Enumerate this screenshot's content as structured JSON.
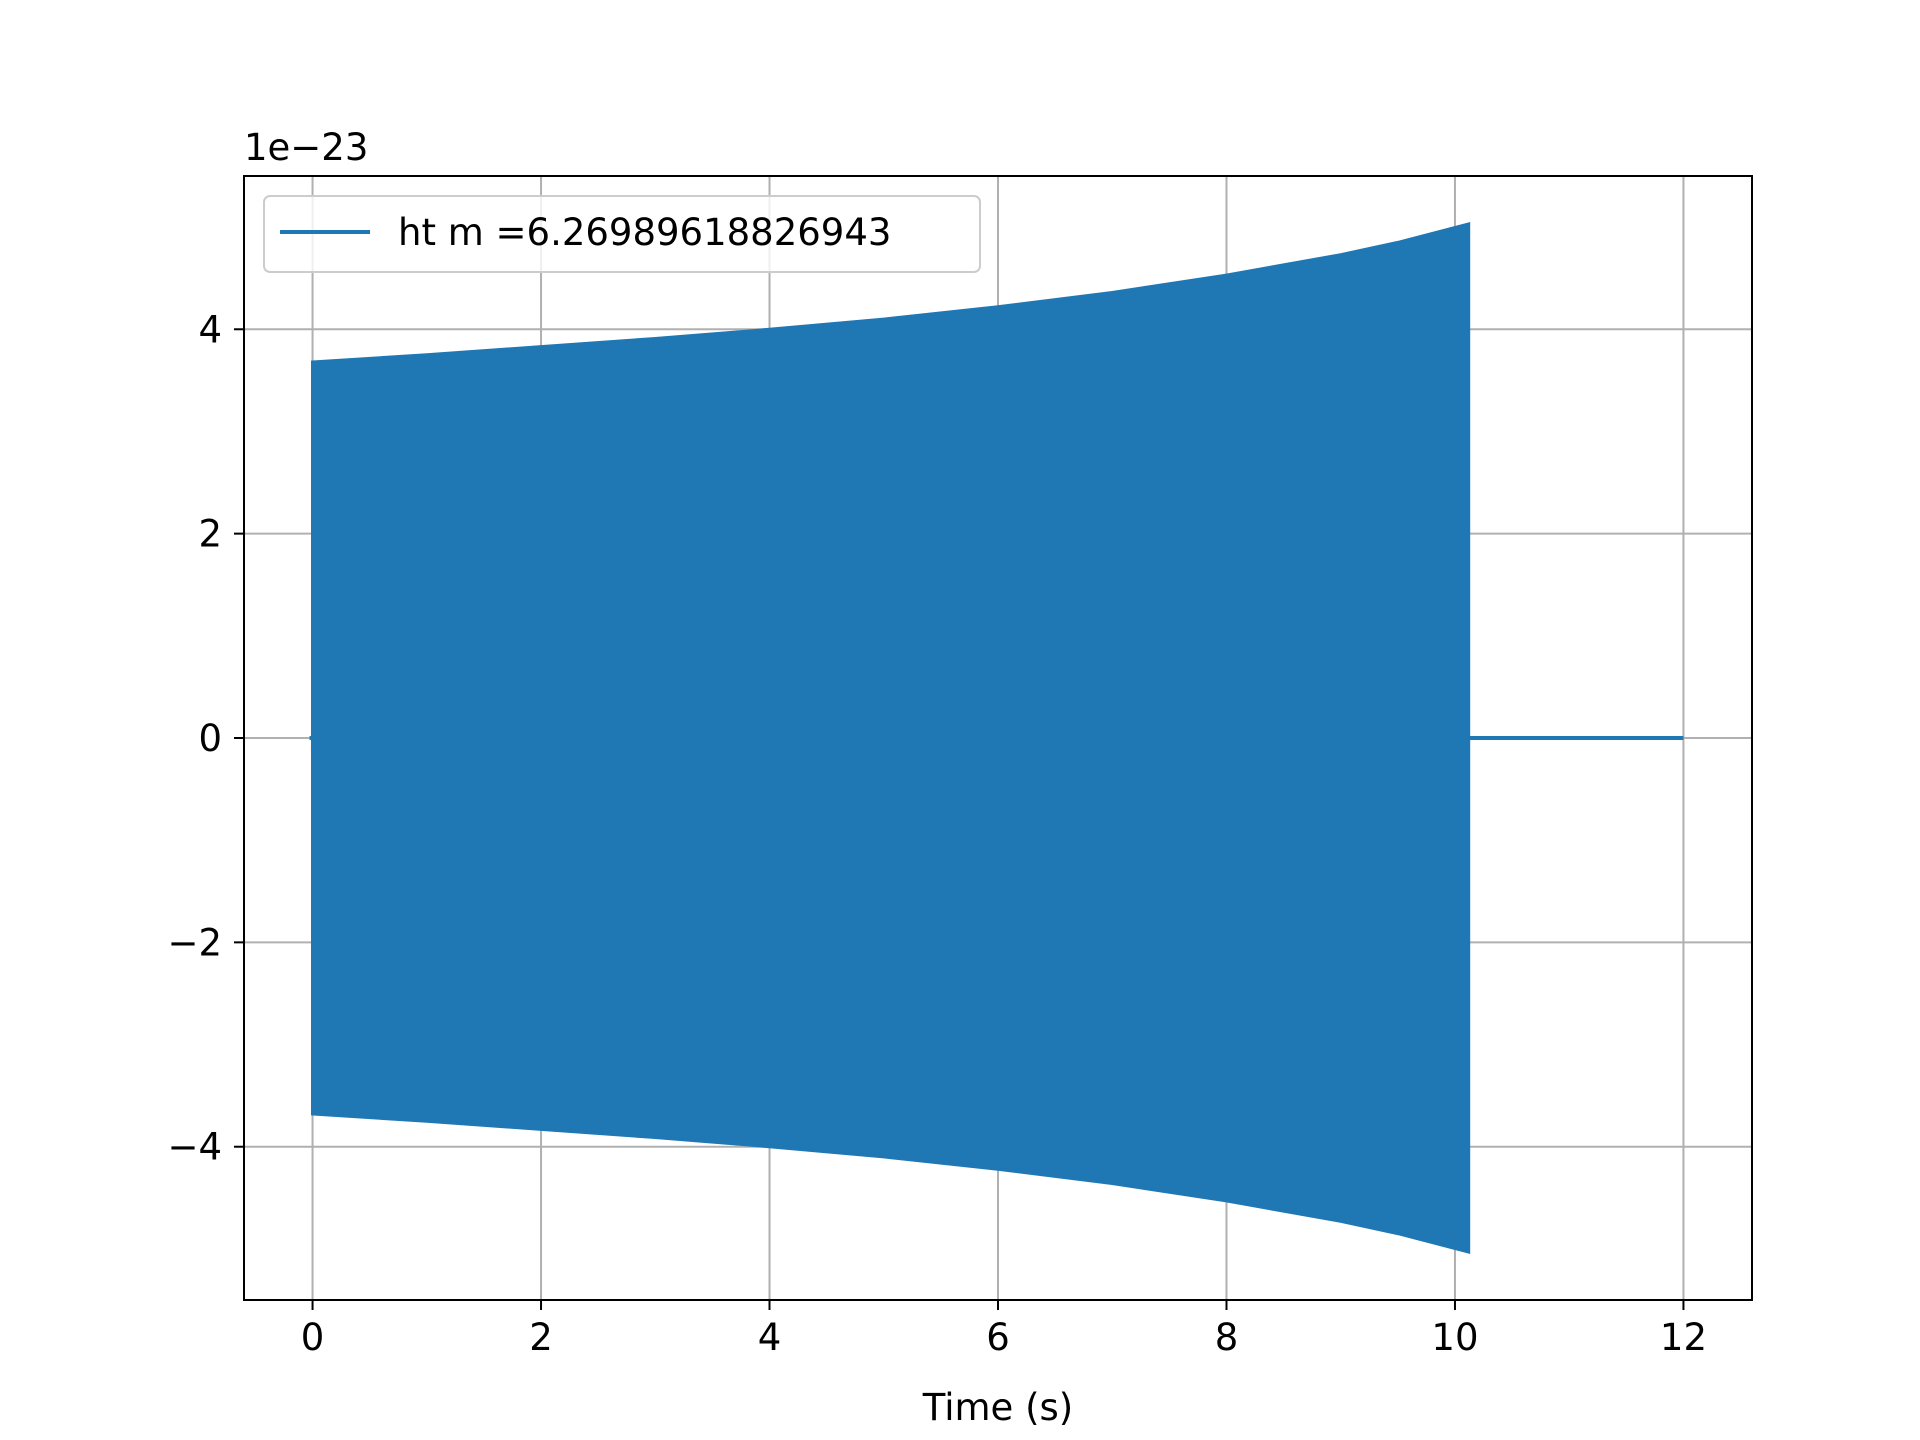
{
  "chart_data": {
    "type": "line",
    "title": "",
    "xlabel": "Time (s)",
    "ylabel": "",
    "y_multiplier_label": "1e−23",
    "xlim": [
      -0.6,
      12.6
    ],
    "ylim": [
      -5.5,
      5.5
    ],
    "x_ticks": [
      0,
      2,
      4,
      6,
      8,
      10,
      12
    ],
    "y_ticks": [
      -4,
      -2,
      0,
      2,
      4
    ],
    "x_tick_labels": [
      "0",
      "2",
      "4",
      "6",
      "8",
      "10",
      "12"
    ],
    "y_tick_labels": [
      "−4",
      "−2",
      "0",
      "2",
      "4"
    ],
    "grid": true,
    "legend_position": "upper-left",
    "series": [
      {
        "name": "ht m =6.26989618826943",
        "color": "#1f77b4",
        "signal_kind": "oscillation",
        "signal_start_x": 0,
        "signal_end_x": 10.12,
        "zero_line_until_x": 12,
        "envelope_x": [
          0,
          1,
          2,
          3,
          4,
          5,
          6,
          7,
          8,
          9,
          9.5,
          10.12
        ],
        "envelope_y": [
          3.68,
          3.75,
          3.83,
          3.91,
          4.0,
          4.1,
          4.22,
          4.36,
          4.53,
          4.73,
          4.85,
          5.03
        ]
      }
    ]
  }
}
